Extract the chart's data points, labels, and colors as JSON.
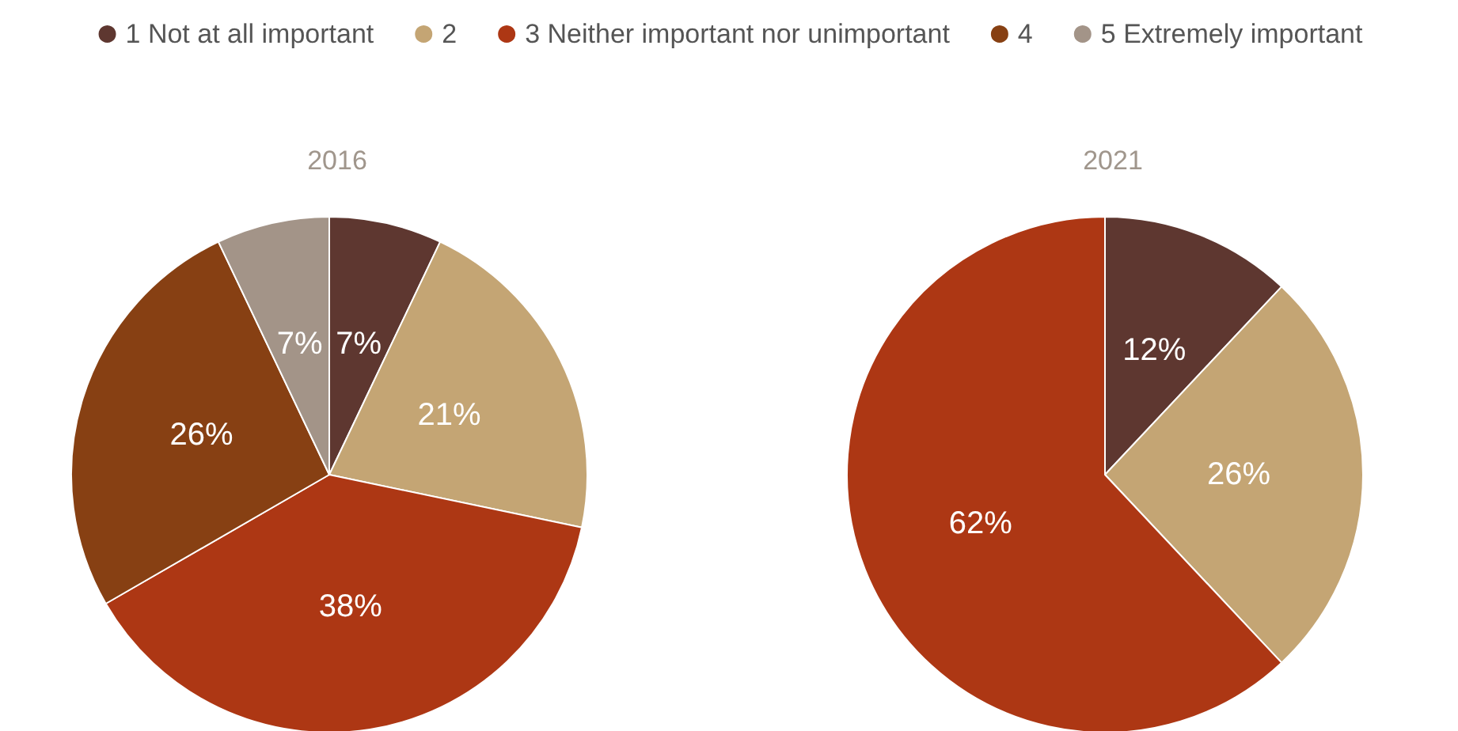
{
  "chart_data": [
    {
      "type": "pie",
      "title": "2016",
      "categories": [
        "1 Not at all important",
        "2",
        "3 Neither important nor unimportant",
        "4",
        "5 Extremely important"
      ],
      "values": [
        7,
        21,
        38,
        26,
        7
      ],
      "value_labels": [
        "7%",
        "21%",
        "38%",
        "26%",
        "7%"
      ],
      "colors": [
        "#5e3730",
        "#c4a574",
        "#ad3714",
        "#874013",
        "#a39488"
      ],
      "legend": "top"
    },
    {
      "type": "pie",
      "title": "2021",
      "categories": [
        null,
        null,
        null
      ],
      "values": [
        12,
        26,
        62
      ],
      "value_labels": [
        "12%",
        "26%",
        "62%"
      ],
      "colors": [
        "#5e3730",
        "#c4a574",
        "#ad3714"
      ]
    }
  ]
}
